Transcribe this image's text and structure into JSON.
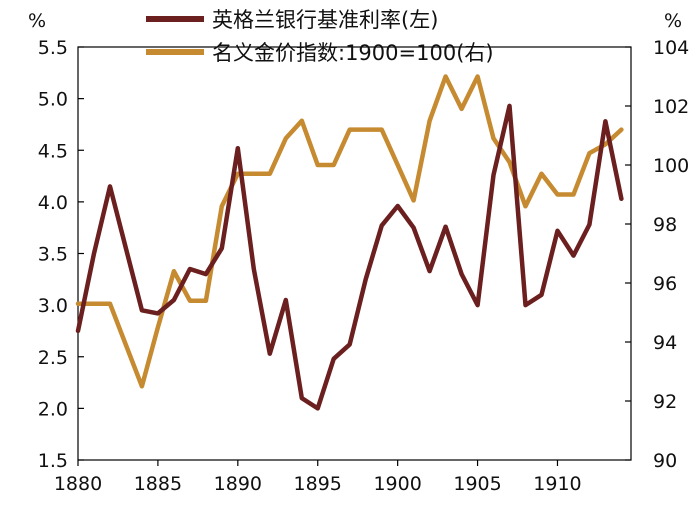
{
  "chart_data": {
    "type": "line",
    "x": [
      1880,
      1881,
      1882,
      1883,
      1884,
      1885,
      1886,
      1887,
      1888,
      1889,
      1890,
      1891,
      1892,
      1893,
      1894,
      1895,
      1896,
      1897,
      1898,
      1899,
      1900,
      1901,
      1902,
      1903,
      1904,
      1905,
      1906,
      1907,
      1908,
      1909,
      1910,
      1911,
      1912,
      1913,
      1914
    ],
    "xlim": [
      1880,
      1914.6
    ],
    "xticks": [
      1880,
      1885,
      1890,
      1895,
      1900,
      1905,
      1910
    ],
    "left_axis": {
      "unit": "%",
      "ylim": [
        1.5,
        5.5
      ],
      "ticks": [
        1.5,
        2.0,
        2.5,
        3.0,
        3.5,
        4.0,
        4.5,
        5.0,
        5.5
      ],
      "tick_labels": [
        "1.5",
        "2.0",
        "2.5",
        "3.0",
        "3.5",
        "4.0",
        "4.5",
        "5.0",
        "5.5"
      ]
    },
    "right_axis": {
      "unit": "%",
      "ylim": [
        90,
        104
      ],
      "ticks": [
        90,
        92,
        94,
        96,
        98,
        100,
        102,
        104
      ],
      "tick_labels": [
        "90",
        "92",
        "94",
        "96",
        "98",
        "100",
        "102",
        "104"
      ]
    },
    "series": [
      {
        "name": "英格兰银行基准利率(左)",
        "axis": "left",
        "color": "#6b1f1f",
        "values": [
          2.75,
          3.5,
          4.15,
          3.55,
          2.95,
          2.92,
          3.05,
          3.35,
          3.3,
          3.55,
          4.52,
          3.35,
          2.53,
          3.05,
          2.1,
          2.0,
          2.48,
          2.62,
          3.25,
          3.77,
          3.96,
          3.75,
          3.33,
          3.76,
          3.3,
          3.0,
          4.26,
          4.93,
          3.0,
          3.1,
          3.72,
          3.48,
          3.78,
          4.78,
          4.03
        ]
      },
      {
        "name": "名义金价指数:1900=100(右)",
        "axis": "right",
        "color": "#c68a30",
        "values": [
          95.3,
          95.3,
          95.3,
          93.9,
          92.5,
          94.5,
          96.4,
          95.4,
          95.4,
          98.6,
          99.7,
          99.7,
          99.7,
          100.9,
          101.5,
          100.0,
          100.0,
          101.2,
          101.2,
          101.2,
          100.0,
          98.8,
          101.5,
          103.0,
          101.9,
          103.0,
          100.9,
          100.1,
          98.6,
          99.7,
          99.0,
          99.0,
          100.4,
          100.7,
          101.2
        ]
      }
    ],
    "grid": false,
    "legend_position": "top-center"
  }
}
